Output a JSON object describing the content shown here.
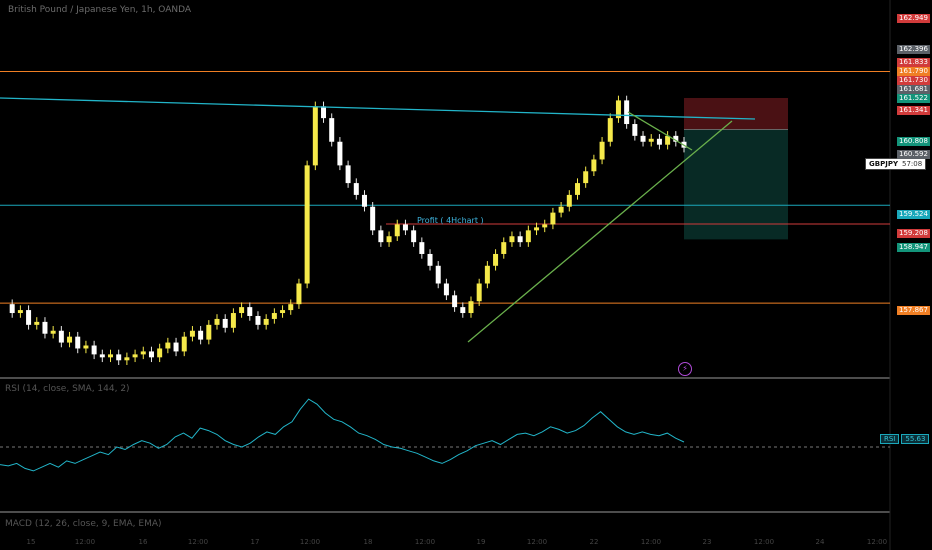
{
  "header": {
    "title": "British Pound / Japanese Yen, 1h, OANDA"
  },
  "annotation": {
    "profit_label": "Profit ( 4Hchart )"
  },
  "symbol_tag": {
    "symbol": "GBPJPY",
    "countdown": "57:08"
  },
  "price_tags": [
    {
      "value": "162.949",
      "color": "#d13b3b"
    },
    {
      "value": "162.396",
      "color": "#5c6168"
    },
    {
      "value": "161.833",
      "color": "#d13b3b"
    },
    {
      "value": "161.790",
      "color": "#f07f24"
    },
    {
      "value": "161.730",
      "color": "#d13b3b"
    },
    {
      "value": "161.681",
      "color": "#5c6168"
    },
    {
      "value": "161.522",
      "color": "#13947a"
    },
    {
      "value": "161.341",
      "color": "#d13b3b"
    },
    {
      "value": "160.808",
      "color": "#13947a"
    },
    {
      "value": "160.592",
      "color": "#5c6168"
    },
    {
      "value": "159.524",
      "color": "#1aa8bb"
    },
    {
      "value": "159.208",
      "color": "#d13b3b"
    },
    {
      "value": "158.947",
      "color": "#13947a"
    },
    {
      "value": "157.867",
      "color": "#f07f24"
    }
  ],
  "rsi": {
    "title": "RSI (14, close, SMA, 144, 2)",
    "label": "RSI",
    "value": "55.63"
  },
  "macd": {
    "title": "MACD (12, 26, close, 9, EMA, EMA)"
  },
  "x_axis": {
    "labels": [
      "15",
      "12:00",
      "16",
      "12:00",
      "17",
      "12:00",
      "18",
      "12:00",
      "19",
      "12:00",
      "22",
      "12:00",
      "23",
      "12:00",
      "24",
      "12:00"
    ]
  },
  "chart_data": {
    "type": "candlestick",
    "title": "British Pound / Japanese Yen, 1h, OANDA",
    "timeframe": "1h",
    "y_range": [
      156.6,
      163.0
    ],
    "last_price": 160.592,
    "levels": [
      {
        "name": "orange-resistance",
        "value": 161.79,
        "color": "#f07f24"
      },
      {
        "name": "cyan-level",
        "value": 159.524,
        "color": "#1aa8bb"
      },
      {
        "name": "red-profit-level",
        "value": 159.208,
        "color": "#d13b3b"
      },
      {
        "name": "orange-support",
        "value": 157.867,
        "color": "#f07f24"
      }
    ],
    "position": {
      "type": "short",
      "stop": 161.341,
      "entry": 160.808,
      "target": 158.947
    },
    "price_series_approx": [
      157.85,
      157.7,
      157.75,
      157.5,
      157.55,
      157.35,
      157.4,
      157.2,
      157.3,
      157.1,
      157.15,
      157.0,
      156.95,
      157.0,
      156.9,
      156.95,
      157.0,
      157.05,
      156.95,
      157.1,
      157.2,
      157.05,
      157.3,
      157.4,
      157.25,
      157.5,
      157.6,
      157.45,
      157.7,
      157.8,
      157.65,
      157.5,
      157.6,
      157.7,
      157.75,
      157.85,
      158.2,
      160.2,
      161.2,
      161.0,
      160.6,
      160.2,
      159.9,
      159.7,
      159.5,
      159.1,
      158.9,
      159.0,
      159.2,
      159.1,
      158.9,
      158.7,
      158.5,
      158.2,
      158.0,
      157.8,
      157.7,
      157.9,
      158.2,
      158.5,
      158.7,
      158.9,
      159.0,
      158.9,
      159.1,
      159.15,
      159.2,
      159.4,
      159.5,
      159.7,
      159.9,
      160.1,
      160.3,
      160.6,
      161.0,
      161.3,
      160.9,
      160.7,
      160.6,
      160.65,
      160.55,
      160.7,
      160.6,
      160.5
    ],
    "rsi_series_approx": [
      36,
      35,
      37,
      33,
      31,
      34,
      37,
      34,
      39,
      37,
      40,
      43,
      46,
      44,
      50,
      48,
      52,
      55,
      53,
      49,
      52,
      58,
      61,
      57,
      65,
      63,
      60,
      55,
      52,
      50,
      53,
      58,
      62,
      60,
      66,
      70,
      80,
      88,
      84,
      77,
      72,
      70,
      66,
      61,
      59,
      56,
      52,
      50,
      49,
      47,
      45,
      42,
      39,
      37,
      40,
      44,
      47,
      51,
      53,
      55,
      52,
      56,
      60,
      61,
      59,
      62,
      66,
      64,
      61,
      63,
      67,
      73,
      78,
      72,
      66,
      62,
      60,
      62,
      60,
      59,
      61,
      57,
      54
    ]
  }
}
